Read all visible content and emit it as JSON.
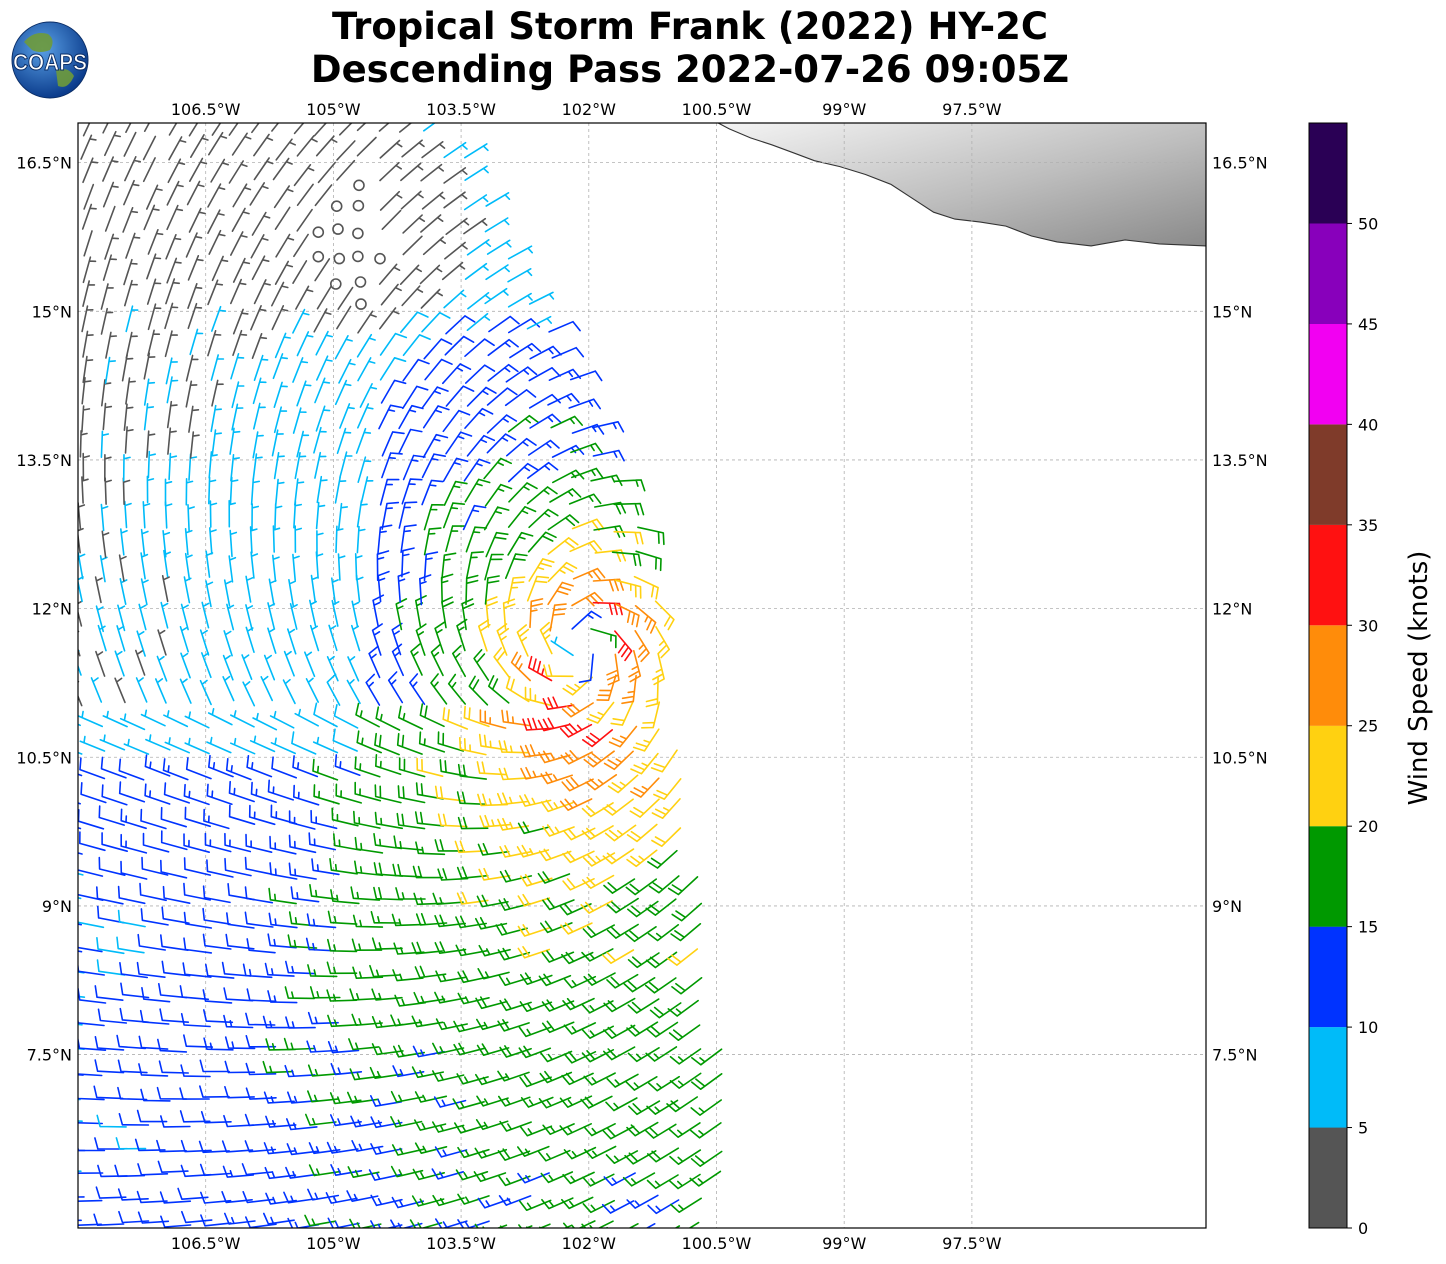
{
  "title": {
    "line1": "Tropical Storm Frank (2022) HY-2C",
    "line2": "Descending Pass 2022-07-26 09:05Z"
  },
  "logo": {
    "text": "COAPS",
    "icon": "globe-icon"
  },
  "map": {
    "lon_range": [
      -108,
      -94.75
    ],
    "lat_range": [
      5.75,
      16.9
    ],
    "lon_ticks": [
      {
        "value": -106.5,
        "label": "106.5°W"
      },
      {
        "value": -105,
        "label": "105°W"
      },
      {
        "value": -103.5,
        "label": "103.5°W"
      },
      {
        "value": -102,
        "label": "102°W"
      },
      {
        "value": -100.5,
        "label": "100.5°W"
      },
      {
        "value": -99,
        "label": "99°W"
      },
      {
        "value": -97.5,
        "label": "97.5°W"
      }
    ],
    "lat_ticks": [
      {
        "value": 16.5,
        "label": "16.5°N"
      },
      {
        "value": 15,
        "label": "15°N"
      },
      {
        "value": 13.5,
        "label": "13.5°N"
      },
      {
        "value": 12,
        "label": "12°N"
      },
      {
        "value": 10.5,
        "label": "10.5°N"
      },
      {
        "value": 9,
        "label": "9°N"
      },
      {
        "value": 7.5,
        "label": "7.5°N"
      }
    ],
    "grid": true,
    "land": "Mexico coastline, top-right, grayscale terrain",
    "storm_center": {
      "lon": -102.1,
      "lat": 11.6
    },
    "swath_polygon": [
      [
        -108,
        16.9
      ],
      [
        -103.95,
        16.9
      ],
      [
        -103.3,
        16.45
      ],
      [
        -101.3,
        12.65
      ],
      [
        -100.25,
        6.55
      ],
      [
        -100.55,
        5.75
      ],
      [
        -108,
        5.75
      ]
    ]
  },
  "chart_data": {
    "type": "wind-barb map",
    "variable": "Wind Speed (knots)",
    "description_note": "",
    "colorbar": {
      "label": "Wind Speed (knots)",
      "ticks": [
        0,
        5,
        10,
        15,
        20,
        25,
        30,
        35,
        40,
        45,
        50
      ],
      "bins": [
        {
          "min": 0,
          "max": 5,
          "color": "#555555"
        },
        {
          "min": 5,
          "max": 10,
          "color": "#00bbf9"
        },
        {
          "min": 10,
          "max": 15,
          "color": "#0033ff"
        },
        {
          "min": 15,
          "max": 20,
          "color": "#009900"
        },
        {
          "min": 20,
          "max": 25,
          "color": "#ffd111"
        },
        {
          "min": 25,
          "max": 30,
          "color": "#ff8c0a"
        },
        {
          "min": 30,
          "max": 35,
          "color": "#ff1111"
        },
        {
          "min": 35,
          "max": 40,
          "color": "#7f3b2a"
        },
        {
          "min": 40,
          "max": 45,
          "color": "#f200f2"
        },
        {
          "min": 45,
          "max": 50,
          "color": "#8800bb"
        },
        {
          "min": 50,
          "max": 55,
          "color": "#2a0055"
        }
      ]
    }
  }
}
